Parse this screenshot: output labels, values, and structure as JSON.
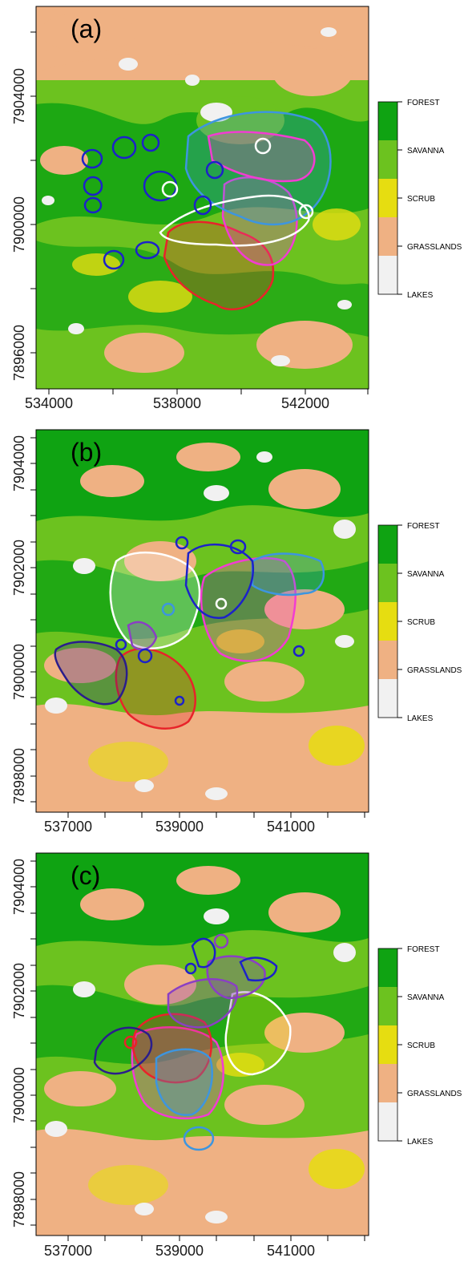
{
  "panels": [
    {
      "label": "(a)",
      "x_ticks": [
        "534000",
        "538000",
        "542000"
      ],
      "y_ticks": [
        "7896000",
        "7900000",
        "7904000"
      ]
    },
    {
      "label": "(b)",
      "x_ticks": [
        "537000",
        "539000",
        "541000"
      ],
      "y_ticks": [
        "7898000",
        "7900000",
        "7902000",
        "7904000"
      ]
    },
    {
      "label": "(c)",
      "x_ticks": [
        "537000",
        "539000",
        "541000"
      ],
      "y_ticks": [
        "7898000",
        "7900000",
        "7902000",
        "7904000"
      ]
    }
  ],
  "legend": {
    "classes": [
      "FOREST",
      "SAVANNA",
      "SCRUB",
      "GRASSLANDS",
      "LAKES"
    ],
    "colors": [
      "#0fa312",
      "#6cc21f",
      "#e6dd11",
      "#efb183",
      "#f1f1f1"
    ]
  },
  "home_range_colors": [
    "#1c22c9",
    "#e8232a",
    "#f23cd2",
    "#3d95df",
    "#ffffff",
    "#2a1d8c",
    "#8a3fc4"
  ]
}
